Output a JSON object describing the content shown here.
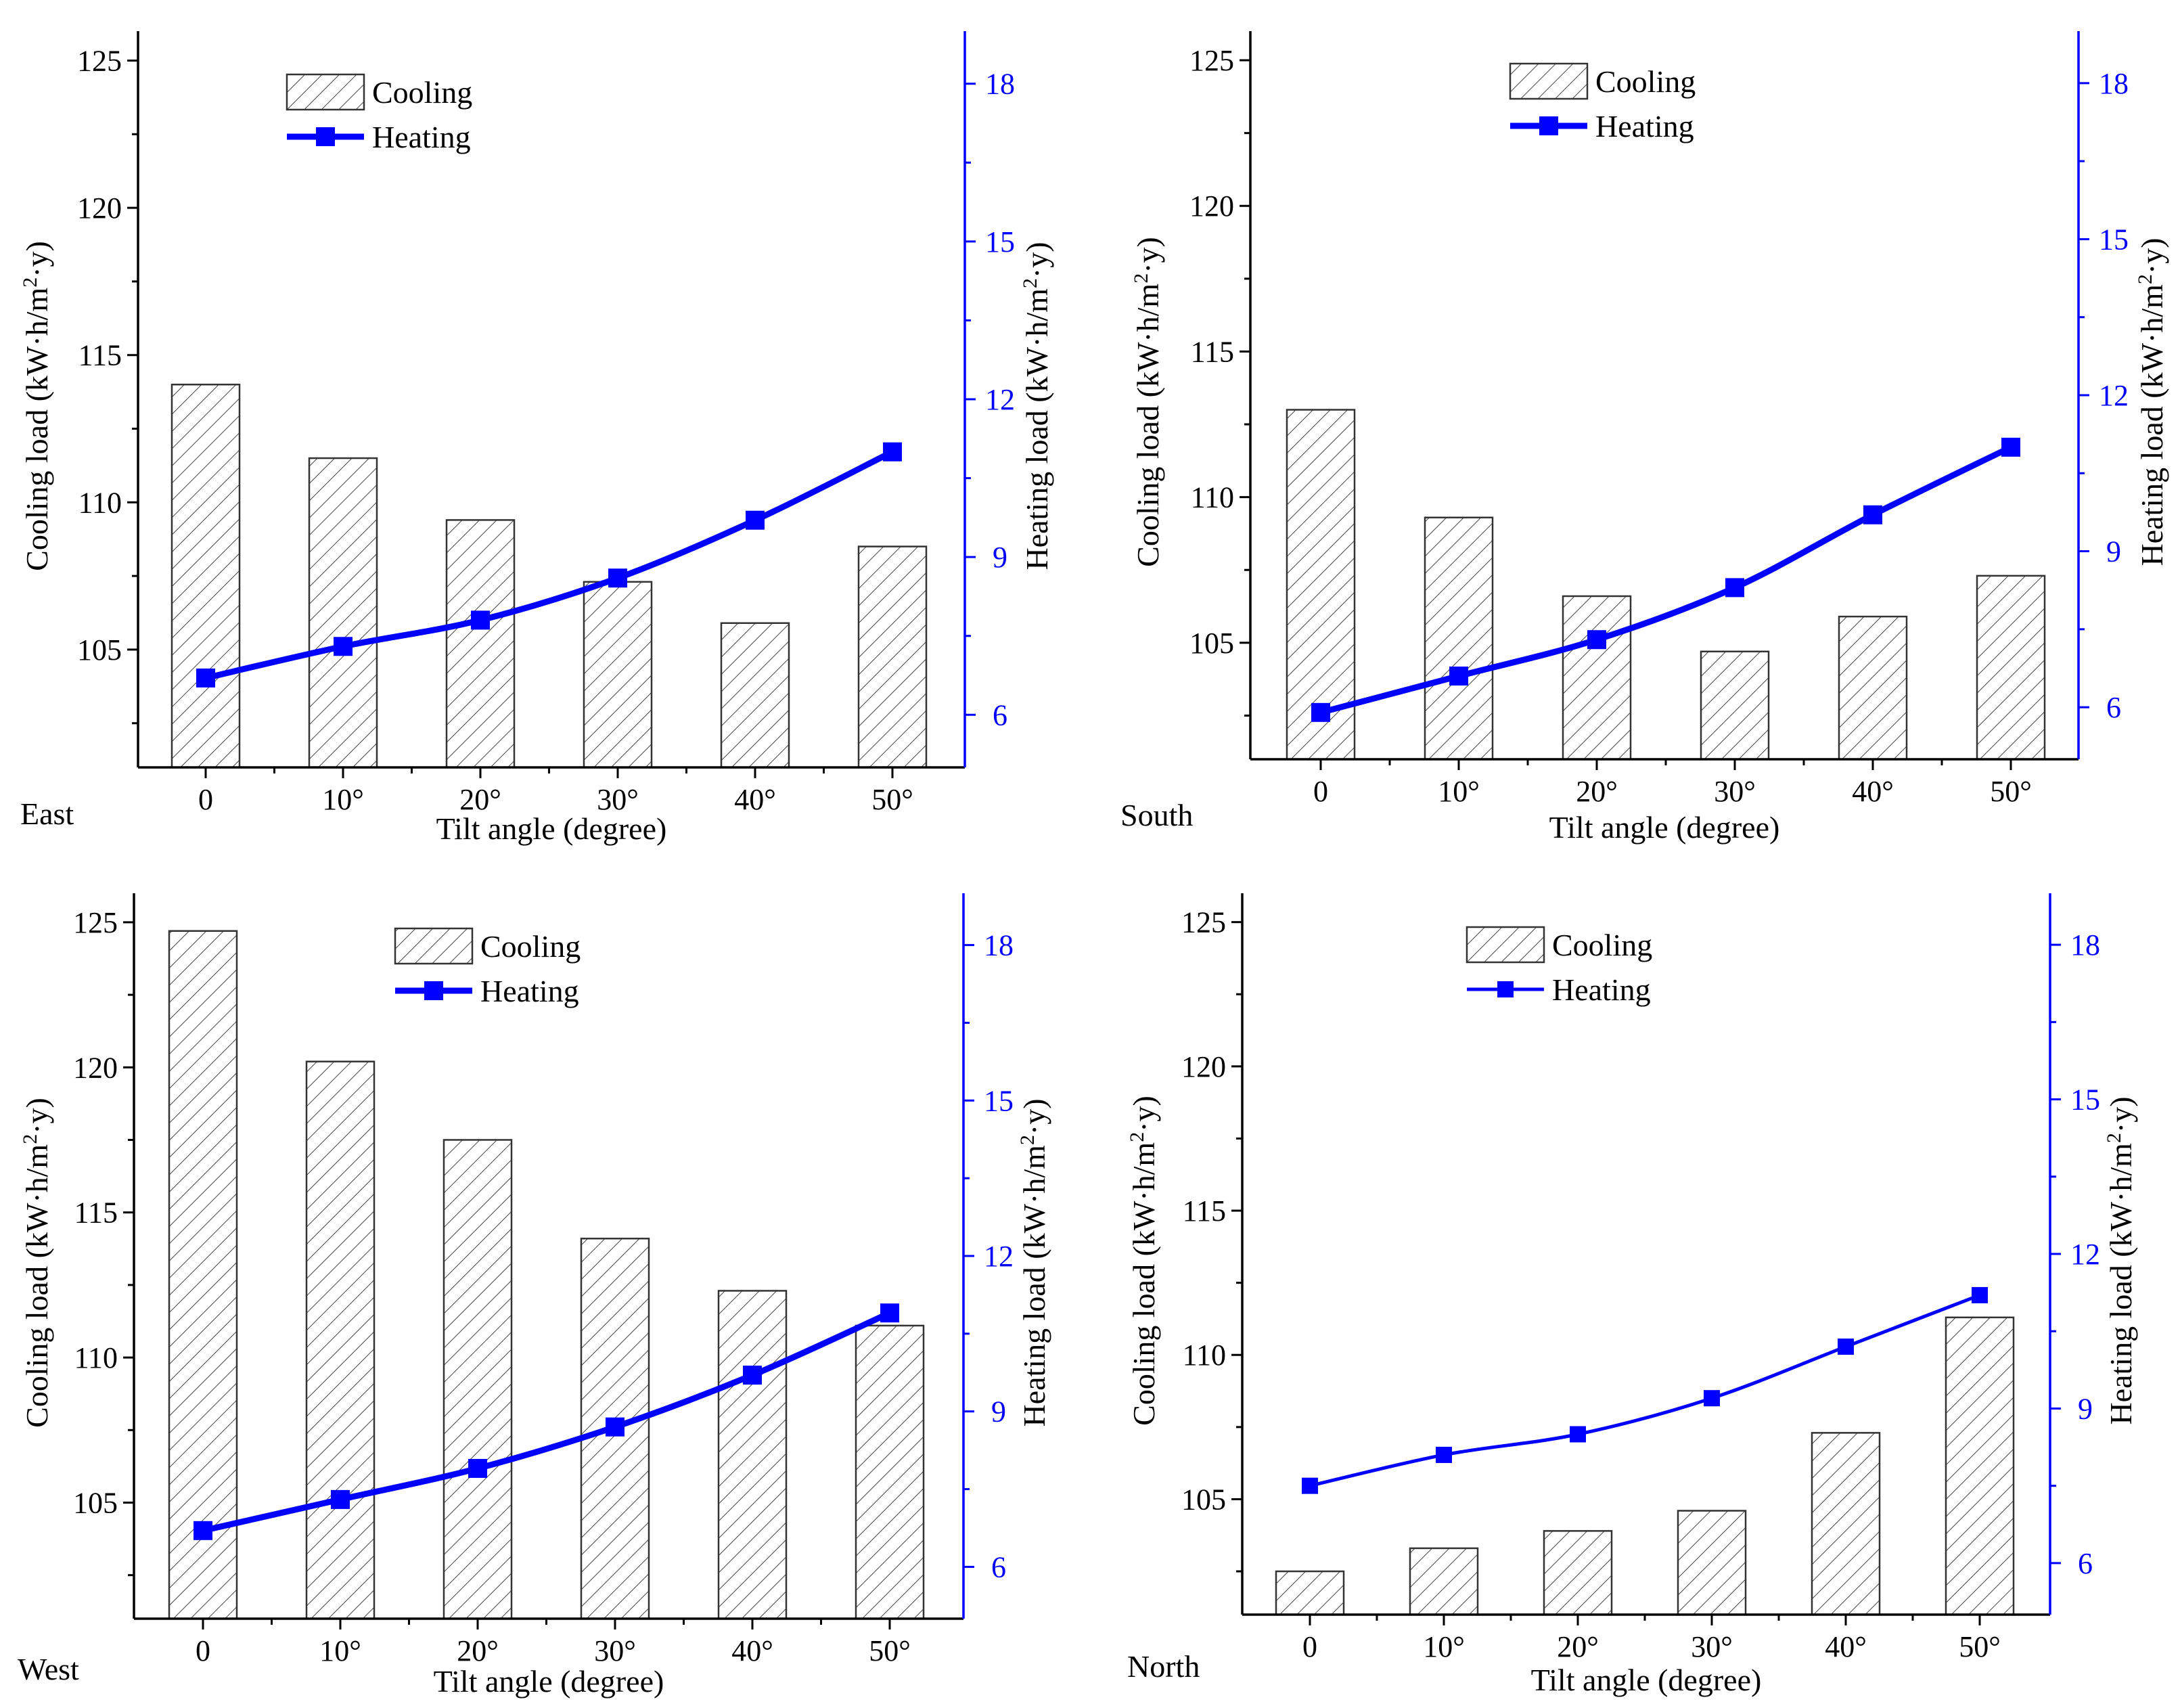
{
  "chart_data": [
    {
      "type": "bar",
      "panel_label": "East",
      "categories": [
        "0",
        "10°",
        "20°",
        "30°",
        "40°",
        "50°"
      ],
      "series": [
        {
          "name": "Cooling",
          "axis": "left",
          "kind": "bar",
          "values": [
            114.0,
            111.5,
            109.4,
            107.3,
            105.9,
            108.5
          ]
        },
        {
          "name": "Heating",
          "axis": "right",
          "kind": "line",
          "values": [
            6.7,
            7.3,
            7.8,
            8.6,
            9.7,
            11.0
          ]
        }
      ],
      "xlabel": "Tilt angle (degree)",
      "ylabel_left": "Cooling load  (kW·h/m²·y)",
      "ylabel_right": "Heating load (kW·h/m²·y)",
      "ylim_left": [
        101,
        126
      ],
      "yticks_left": [
        "105",
        "110",
        "115",
        "120",
        "125"
      ],
      "ylim_right": [
        5,
        19
      ],
      "yticks_right": [
        "6",
        "9",
        "12",
        "15",
        "18"
      ],
      "legend": {
        "cooling": "Cooling",
        "heating": "Heating",
        "position": "top-left"
      },
      "grid": false
    },
    {
      "type": "bar",
      "panel_label": "South",
      "categories": [
        "0",
        "10°",
        "20°",
        "30°",
        "40°",
        "50°"
      ],
      "series": [
        {
          "name": "Cooling",
          "axis": "left",
          "kind": "bar",
          "values": [
            113.0,
            109.3,
            106.6,
            104.7,
            105.9,
            107.3
          ]
        },
        {
          "name": "Heating",
          "axis": "right",
          "kind": "line",
          "values": [
            5.9,
            6.6,
            7.3,
            8.3,
            9.7,
            11.0
          ]
        }
      ],
      "xlabel": "Tilt angle (degree)",
      "ylabel_left": "Cooling load  (kW·h/m²·y)",
      "ylabel_right": "Heating load (kW·h/m²·y)",
      "ylim_left": [
        101,
        126
      ],
      "yticks_left": [
        "105",
        "110",
        "115",
        "120",
        "125"
      ],
      "ylim_right": [
        5,
        19
      ],
      "yticks_right": [
        "6",
        "9",
        "12",
        "15",
        "18"
      ],
      "legend": {
        "cooling": "Cooling",
        "heating": "Heating",
        "position": "top-center"
      },
      "grid": false
    },
    {
      "type": "bar",
      "panel_label": "West",
      "categories": [
        "0",
        "10°",
        "20°",
        "30°",
        "40°",
        "50°"
      ],
      "series": [
        {
          "name": "Cooling",
          "axis": "left",
          "kind": "bar",
          "values": [
            124.7,
            120.2,
            117.5,
            114.1,
            112.3,
            111.1
          ]
        },
        {
          "name": "Heating",
          "axis": "right",
          "kind": "line",
          "values": [
            6.7,
            7.3,
            7.9,
            8.7,
            9.7,
            10.9
          ]
        }
      ],
      "xlabel": "Tilt angle (degree)",
      "ylabel_left": "Cooling load  (kW·h/m²·y)",
      "ylabel_right": "Heating load (kW·h/m²·y)",
      "ylim_left": [
        101,
        126
      ],
      "yticks_left": [
        "105",
        "110",
        "115",
        "120",
        "125"
      ],
      "ylim_right": [
        5,
        19
      ],
      "yticks_right": [
        "6",
        "9",
        "12",
        "15",
        "18"
      ],
      "legend": {
        "cooling": "Cooling",
        "heating": "Heating",
        "position": "top-center"
      },
      "grid": false
    },
    {
      "type": "bar",
      "panel_label": "North",
      "categories": [
        "0",
        "10°",
        "20°",
        "30°",
        "40°",
        "50°"
      ],
      "series": [
        {
          "name": "Cooling",
          "axis": "left",
          "kind": "bar",
          "values": [
            102.5,
            103.3,
            103.9,
            104.6,
            107.3,
            111.3
          ]
        },
        {
          "name": "Heating",
          "axis": "right",
          "kind": "line",
          "values": [
            7.5,
            8.1,
            8.5,
            9.2,
            10.2,
            11.2
          ]
        }
      ],
      "xlabel": "Tilt angle (degree)",
      "ylabel_left": "Cooling load  (kW·h/m²·y)",
      "ylabel_right": "Heating load (kW·h/m²·y)",
      "ylim_left": [
        101,
        126
      ],
      "yticks_left": [
        "105",
        "110",
        "115",
        "120",
        "125"
      ],
      "ylim_right": [
        5,
        19
      ],
      "yticks_right": [
        "6",
        "9",
        "12",
        "15",
        "18"
      ],
      "legend": {
        "cooling": "Cooling",
        "heating": "Heating",
        "position": "top-left"
      },
      "grid": false
    }
  ],
  "colors": {
    "heating": "#0000ff",
    "cooling_hatch": "#333333",
    "axis": "#000000"
  }
}
